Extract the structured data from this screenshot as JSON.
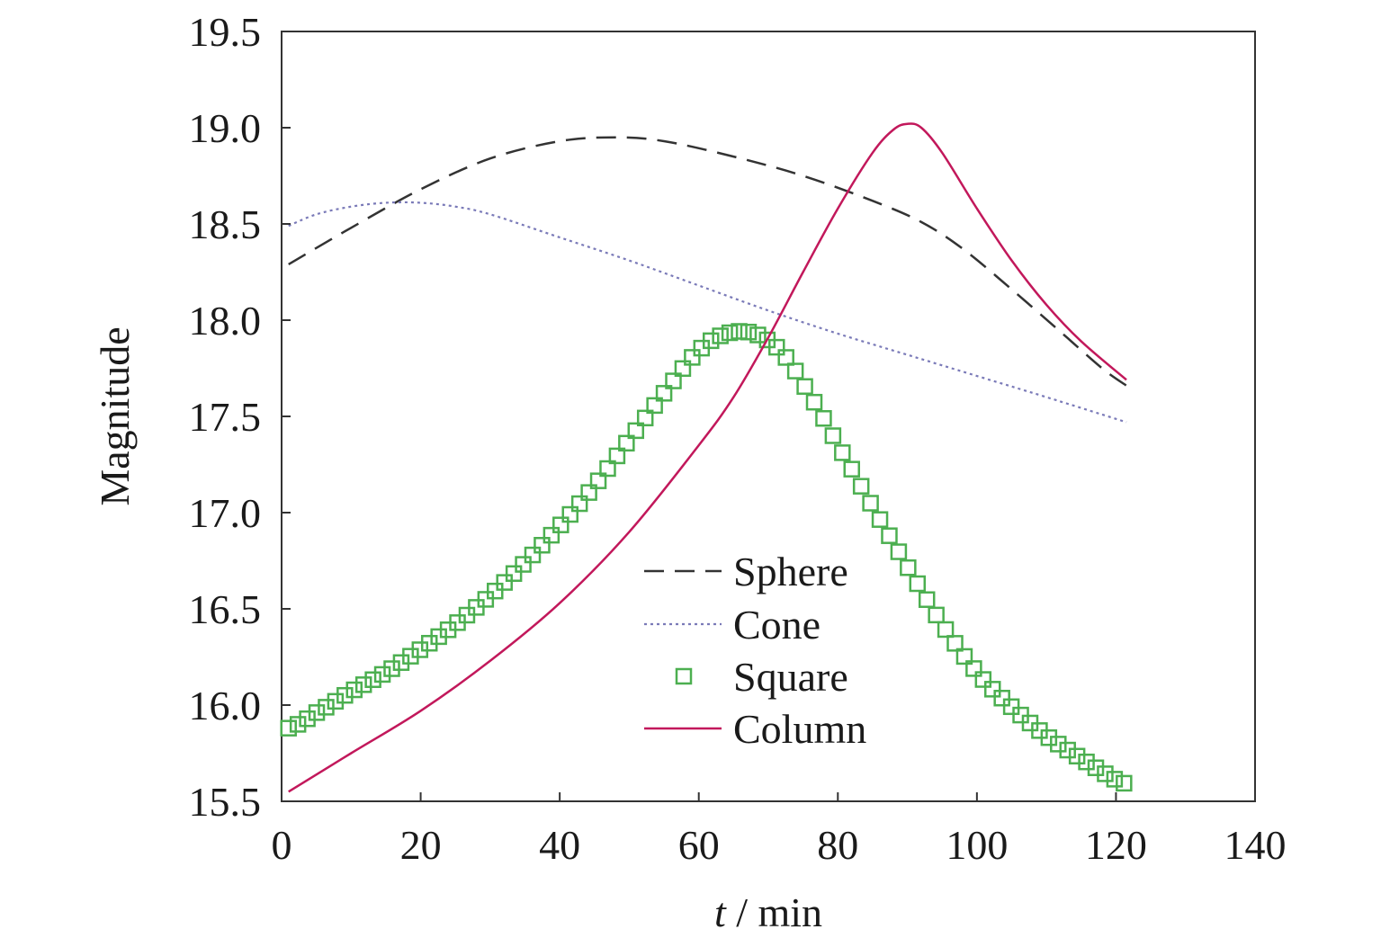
{
  "chart_data": {
    "type": "line",
    "title": "",
    "xlabel_var": "t",
    "xlabel_unit": " / min",
    "ylabel": "Magnitude",
    "xlim": [
      0,
      140
    ],
    "ylim": [
      15.5,
      19.5
    ],
    "xticks": [
      "0",
      "20",
      "40",
      "60",
      "80",
      "100",
      "120",
      "140"
    ],
    "yticks": [
      "15.5",
      "16.0",
      "16.5",
      "17.0",
      "17.5",
      "18.0",
      "18.5",
      "19.0",
      "19.5"
    ],
    "grid": false,
    "legend_position": "center-bottom",
    "series": [
      {
        "name": "Sphere",
        "style": "dashed",
        "color": "#333333",
        "x": [
          1,
          10,
          20,
          30,
          40,
          48,
          55,
          65,
          75,
          85,
          92,
          98,
          105,
          112,
          118,
          121.5
        ],
        "y": [
          18.29,
          18.48,
          18.68,
          18.84,
          18.93,
          18.95,
          18.93,
          18.85,
          18.75,
          18.62,
          18.51,
          18.37,
          18.16,
          17.94,
          17.75,
          17.66
        ]
      },
      {
        "name": "Cone",
        "style": "dotted",
        "color": "#7a7ab8",
        "x": [
          1,
          5,
          10,
          15,
          20,
          25,
          30,
          40,
          50,
          60,
          70,
          80,
          90,
          100,
          110,
          121.5
        ],
        "y": [
          18.49,
          18.55,
          18.59,
          18.61,
          18.61,
          18.59,
          18.55,
          18.43,
          18.31,
          18.18,
          18.05,
          17.93,
          17.82,
          17.71,
          17.6,
          17.47
        ]
      },
      {
        "name": "Square",
        "style": "markers",
        "marker": "square",
        "color": "#4caf50",
        "x": [
          1,
          5,
          10,
          15,
          20,
          25,
          30,
          35,
          40,
          45,
          50,
          55,
          60,
          64,
          68,
          72,
          76,
          80,
          85,
          90,
          95,
          100,
          105,
          110,
          115,
          121.5
        ],
        "y": [
          15.88,
          15.96,
          16.07,
          16.17,
          16.29,
          16.42,
          16.57,
          16.74,
          16.93,
          17.14,
          17.38,
          17.62,
          17.84,
          17.93,
          17.93,
          17.83,
          17.61,
          17.35,
          17.03,
          16.72,
          16.42,
          16.17,
          15.99,
          15.84,
          15.72,
          15.59
        ]
      },
      {
        "name": "Column",
        "style": "solid",
        "color": "#c2185b",
        "x": [
          1,
          10,
          20,
          30,
          40,
          50,
          60,
          65,
          70,
          75,
          80,
          85,
          88,
          90,
          92,
          95,
          100,
          105,
          110,
          115,
          121.5
        ],
        "y": [
          15.55,
          15.75,
          15.97,
          16.23,
          16.53,
          16.9,
          17.35,
          17.6,
          17.91,
          18.25,
          18.58,
          18.87,
          18.99,
          19.02,
          19.0,
          18.87,
          18.58,
          18.31,
          18.08,
          17.89,
          17.69
        ]
      }
    ]
  }
}
